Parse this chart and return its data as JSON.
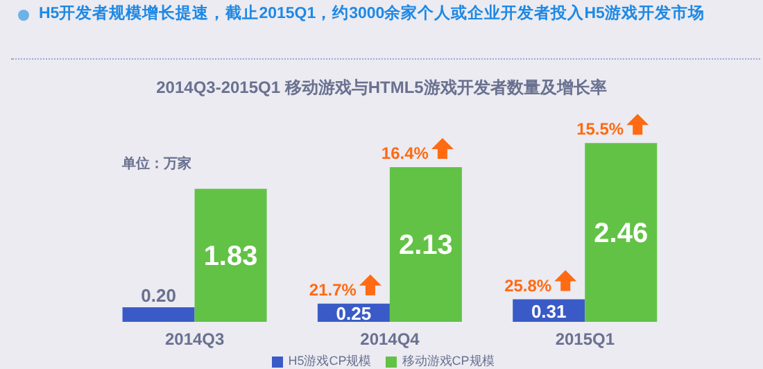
{
  "chart_data": {
    "type": "bar",
    "title": "H5开发者规模增长提速，截止2015Q1，约3000余家个人或企业开发者投入H5游戏开发市场",
    "subtitle": "2014Q3-2015Q1 移动游戏与HTML5游戏开发者数量及增长率",
    "categories": [
      "2014Q3",
      "2014Q4",
      "2015Q1"
    ],
    "series": [
      {
        "name": "H5游戏CP规模",
        "color": "#3a5bc7",
        "values": [
          0.2,
          0.25,
          0.31
        ],
        "value_labels": [
          "0.20",
          "0.25",
          "0.31"
        ]
      },
      {
        "name": "移动游戏CP规模",
        "color": "#62c246",
        "values": [
          1.83,
          2.13,
          2.46
        ],
        "value_labels": [
          "1.83",
          "2.13",
          "2.46"
        ]
      }
    ],
    "legend": "bottom",
    "annotations": [
      "单位：万家",
      {
        "text": "21.7%",
        "x": "2014Q4",
        "y": 0.25
      },
      {
        "text": "25.8%",
        "x": "2015Q1",
        "y": 0.31
      },
      {
        "text": "16.4%",
        "x": "2014Q4",
        "y": 2.13
      },
      {
        "text": "15.5%",
        "x": "2015Q1",
        "y": 2.46
      }
    ]
  }
}
